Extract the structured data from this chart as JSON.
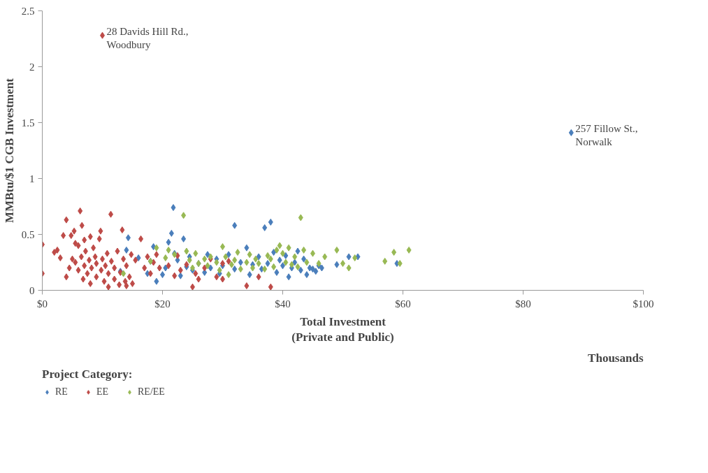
{
  "chart_data": {
    "type": "scatter",
    "xlabel": "Total Investment\n(Private and Public)",
    "ylabel": "MMBtu/$1 CGB Investment",
    "legend_title": "Project Category:",
    "legend": "bottom left",
    "marker": "diamond",
    "grid": false,
    "xlim": [
      0,
      100
    ],
    "xticks": [
      {
        "value": 0,
        "label": "$0"
      },
      {
        "value": 20,
        "label": "$20"
      },
      {
        "value": 40,
        "label": "$40"
      },
      {
        "value": 60,
        "label": "$60"
      },
      {
        "value": 80,
        "label": "$80"
      },
      {
        "value": 100,
        "label": "$100"
      }
    ],
    "ylim": [
      0,
      2.5
    ],
    "yticks": [
      0,
      0.5,
      1,
      1.5,
      2,
      2.5
    ],
    "annotations": [
      {
        "text": "28 Davids Hill Rd.,\nWoodbury",
        "x": 10,
        "y": 2.28
      },
      {
        "text": "257 Fillow St.,\nNorwalk",
        "x": 88,
        "y": 1.41
      },
      "Thousands"
    ],
    "series": [
      {
        "name": "RE",
        "color": "#4a7ebb",
        "x": [
          13,
          14,
          14.3,
          16,
          17.5,
          18,
          18.5,
          19,
          20,
          20.5,
          21,
          21.5,
          21.8,
          22,
          22.5,
          23,
          23.5,
          24,
          24.5,
          25,
          26,
          27,
          27.5,
          28,
          29,
          29.5,
          30,
          31,
          32,
          32,
          33,
          34,
          34.5,
          35,
          36,
          36.5,
          37,
          37.5,
          38,
          38.5,
          39,
          39.5,
          40,
          40.5,
          41,
          41.5,
          42,
          42.5,
          43,
          43.5,
          44,
          44.5,
          45,
          45.5,
          46,
          46.5,
          49,
          51,
          52.5,
          59,
          88
        ],
        "values": [
          0.17,
          0.36,
          0.47,
          0.29,
          0.15,
          0.26,
          0.39,
          0.08,
          0.14,
          0.2,
          0.43,
          0.51,
          0.74,
          0.33,
          0.27,
          0.13,
          0.46,
          0.21,
          0.3,
          0.18,
          0.24,
          0.16,
          0.32,
          0.2,
          0.28,
          0.15,
          0.22,
          0.32,
          0.58,
          0.19,
          0.25,
          0.38,
          0.14,
          0.23,
          0.3,
          0.19,
          0.56,
          0.24,
          0.61,
          0.34,
          0.16,
          0.27,
          0.22,
          0.31,
          0.12,
          0.2,
          0.25,
          0.35,
          0.18,
          0.28,
          0.14,
          0.2,
          0.19,
          0.17,
          0.22,
          0.2,
          0.23,
          0.3,
          0.3,
          0.24,
          1.41
        ]
      },
      {
        "name": "EE",
        "color": "#be4b48",
        "x": [
          0,
          0,
          2,
          2.5,
          3,
          3.5,
          4,
          4,
          4.5,
          4.8,
          5,
          5.3,
          5.5,
          5.5,
          6,
          6,
          6.3,
          6.6,
          6.5,
          6.8,
          7,
          7,
          7.2,
          7.5,
          7.8,
          8,
          8,
          8.2,
          8.5,
          8.8,
          9,
          9,
          9.5,
          9.7,
          9.8,
          10,
          10,
          10.3,
          10.5,
          10.8,
          11,
          11,
          11.4,
          11.5,
          12,
          12,
          12.5,
          12.8,
          13,
          13.3,
          13.5,
          13.8,
          14,
          14,
          14.5,
          14.8,
          15,
          15.5,
          16.4,
          17,
          17.5,
          18,
          18.5,
          19,
          19.5,
          21,
          22,
          22.5,
          23,
          24,
          25,
          25.5,
          26,
          27,
          28,
          29,
          30,
          30,
          31,
          34,
          36,
          38
        ],
        "values": [
          0.41,
          0.15,
          0.34,
          0.36,
          0.29,
          0.49,
          0.63,
          0.12,
          0.2,
          0.49,
          0.28,
          0.53,
          0.25,
          0.42,
          0.4,
          0.18,
          0.71,
          0.58,
          0.3,
          0.1,
          0.45,
          0.22,
          0.35,
          0.15,
          0.27,
          0.48,
          0.06,
          0.2,
          0.38,
          0.3,
          0.12,
          0.24,
          0.46,
          0.53,
          0.18,
          0.28,
          2.28,
          0.08,
          0.22,
          0.33,
          0.15,
          0.03,
          0.68,
          0.26,
          0.2,
          0.1,
          0.35,
          0.05,
          0.16,
          0.54,
          0.28,
          0.08,
          0.22,
          0.04,
          0.12,
          0.32,
          0.06,
          0.27,
          0.46,
          0.2,
          0.3,
          0.15,
          0.25,
          0.32,
          0.2,
          0.22,
          0.13,
          0.31,
          0.18,
          0.23,
          0.03,
          0.15,
          0.1,
          0.2,
          0.28,
          0.12,
          0.1,
          0.24,
          0.26,
          0.04,
          0.12,
          0.03
        ]
      },
      {
        "name": "RE/EE",
        "color": "#98b954",
        "x": [
          13.5,
          18,
          19,
          20.5,
          21,
          22,
          23.5,
          24,
          24.5,
          25,
          25.5,
          26,
          27,
          27.5,
          28,
          29,
          29.5,
          30,
          30.5,
          31,
          31.5,
          32,
          32.5,
          33,
          34,
          34.5,
          35,
          35.5,
          36,
          37,
          37.5,
          38,
          38.5,
          39,
          39.5,
          40,
          40.5,
          41,
          41.5,
          42,
          42.5,
          43,
          43.5,
          44,
          45,
          46,
          47,
          49,
          50,
          51,
          52,
          57,
          58.5,
          59.5,
          61
        ],
        "values": [
          0.15,
          0.26,
          0.38,
          0.29,
          0.36,
          0.32,
          0.67,
          0.35,
          0.27,
          0.2,
          0.33,
          0.24,
          0.28,
          0.22,
          0.3,
          0.25,
          0.18,
          0.39,
          0.3,
          0.14,
          0.23,
          0.27,
          0.34,
          0.19,
          0.25,
          0.32,
          0.2,
          0.28,
          0.24,
          0.19,
          0.31,
          0.28,
          0.21,
          0.36,
          0.4,
          0.33,
          0.25,
          0.38,
          0.23,
          0.3,
          0.21,
          0.65,
          0.36,
          0.25,
          0.33,
          0.24,
          0.3,
          0.36,
          0.24,
          0.2,
          0.29,
          0.26,
          0.34,
          0.24,
          0.36
        ]
      }
    ]
  }
}
